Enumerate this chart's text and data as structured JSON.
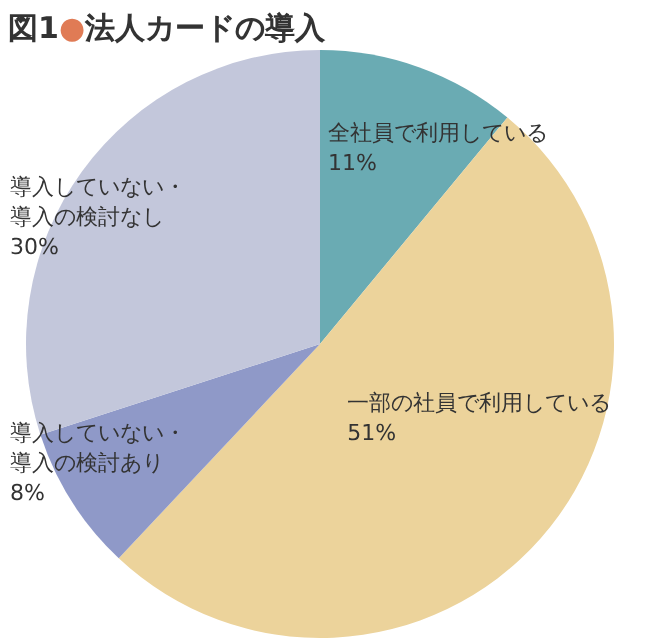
{
  "chart_data": {
    "type": "pie",
    "title": "図1●法人カードの導入",
    "categories": [
      "全社員で利用している",
      "一部の社員で利用している",
      "導入していない・導入の検討あり",
      "導入していない・導入の検討なし"
    ],
    "values": [
      11,
      51,
      8,
      30
    ],
    "colors": [
      "#6aabb3",
      "#ecd39b",
      "#8f99c8",
      "#c3c7db"
    ],
    "value_labels": [
      "11%",
      "51%",
      "8%",
      "30%"
    ]
  }
}
